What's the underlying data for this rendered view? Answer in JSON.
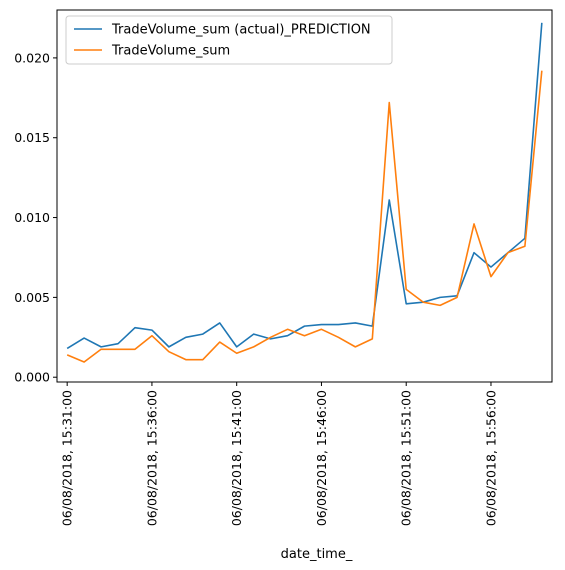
{
  "chart_data": {
    "type": "line",
    "xlabel": "date_time_",
    "ylabel": "",
    "ylim": [
      0.0,
      0.0222
    ],
    "yticks": [
      "0.000",
      "0.005",
      "0.010",
      "0.015",
      "0.020"
    ],
    "ytick_values": [
      0.0,
      0.005,
      0.01,
      0.015,
      0.02
    ],
    "xticks": [
      "06/08/2018, 15:31:00",
      "06/08/2018, 15:36:00",
      "06/08/2018, 15:41:00",
      "06/08/2018, 15:46:00",
      "06/08/2018, 15:51:00",
      "06/08/2018, 15:56:00"
    ],
    "x": [
      "15:31:00",
      "15:32:00",
      "15:33:00",
      "15:34:00",
      "15:35:00",
      "15:36:00",
      "15:37:00",
      "15:38:00",
      "15:39:00",
      "15:40:00",
      "15:41:00",
      "15:42:00",
      "15:43:00",
      "15:44:00",
      "15:45:00",
      "15:46:00",
      "15:47:00",
      "15:48:00",
      "15:49:00",
      "15:50:00",
      "15:51:00",
      "15:52:00",
      "15:53:00",
      "15:54:00",
      "15:55:00",
      "15:56:00",
      "15:57:00",
      "15:58:00",
      "15:59:00"
    ],
    "legend_location": "top-left",
    "grid": false,
    "series": [
      {
        "name": "TradeVolume_sum (actual)_PREDICTION",
        "color": "#1f77b4",
        "values": [
          0.0018,
          0.00245,
          0.0019,
          0.0021,
          0.0031,
          0.00295,
          0.0019,
          0.0025,
          0.0027,
          0.0034,
          0.0019,
          0.0027,
          0.0024,
          0.0026,
          0.0032,
          0.0033,
          0.0033,
          0.0034,
          0.0032,
          0.0111,
          0.0046,
          0.0047,
          0.005,
          0.0051,
          0.0078,
          0.0069,
          0.0078,
          0.0087,
          0.0222
        ]
      },
      {
        "name": "TradeVolume_sum",
        "color": "#ff7f0e",
        "values": [
          0.0014,
          0.00095,
          0.00175,
          0.00175,
          0.00175,
          0.0026,
          0.0016,
          0.0011,
          0.0011,
          0.0022,
          0.0015,
          0.0019,
          0.0025,
          0.003,
          0.0026,
          0.003,
          0.0025,
          0.0019,
          0.0024,
          0.0172,
          0.0055,
          0.0047,
          0.0045,
          0.005,
          0.0096,
          0.0063,
          0.0078,
          0.0082,
          0.0192
        ]
      }
    ]
  }
}
